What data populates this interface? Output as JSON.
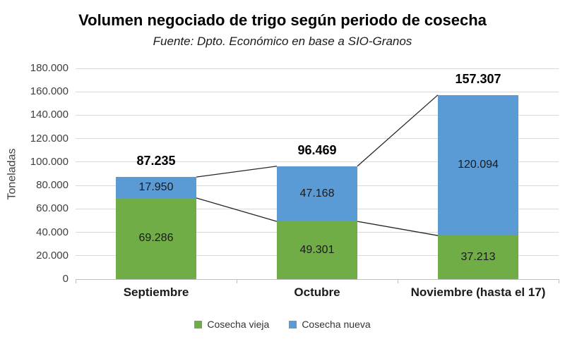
{
  "title": "Volumen negociado de trigo según periodo de cosecha",
  "subtitle": "Fuente: Dpto. Económico en base a SIO-Granos",
  "colors": {
    "cosecha_vieja": "#70AD47",
    "cosecha_nueva": "#5B9BD5",
    "gridline": "#D9D9D9",
    "axis_line": "#BFBFBF",
    "connector_line": "#262626",
    "tick_text": "#404040",
    "label_text": "#1A1A1A",
    "title_text": "#000000"
  },
  "chart_data": {
    "type": "bar",
    "stacked": true,
    "title": "Volumen negociado de trigo según periodo de cosecha",
    "subtitle": "Fuente: Dpto. Económico en base a SIO-Granos",
    "categories": [
      "Septiembre",
      "Octubre",
      "Noviembre (hasta el 17)"
    ],
    "series": [
      {
        "name": "Cosecha vieja",
        "color": "#70AD47",
        "values": [
          69286,
          49301,
          37213
        ],
        "value_labels": [
          "69.286",
          "49.301",
          "37.213"
        ]
      },
      {
        "name": "Cosecha nueva",
        "color": "#5B9BD5",
        "values": [
          17950,
          47168,
          120094
        ],
        "value_labels": [
          "17.950",
          "47.168",
          "120.094"
        ]
      }
    ],
    "totals": [
      87235,
      96469,
      157307
    ],
    "total_labels": [
      "87.235",
      "96.469",
      "157.307"
    ],
    "xlabel": "",
    "ylabel": "Toneladas",
    "ylim": [
      0,
      180000
    ],
    "ytick_step": 20000,
    "ytick_labels": [
      "0",
      "20.000",
      "40.000",
      "60.000",
      "80.000",
      "100.000",
      "120.000",
      "140.000",
      "160.000",
      "180.000"
    ],
    "grid": true,
    "legend_position": "bottom",
    "series_connector_lines": true
  }
}
